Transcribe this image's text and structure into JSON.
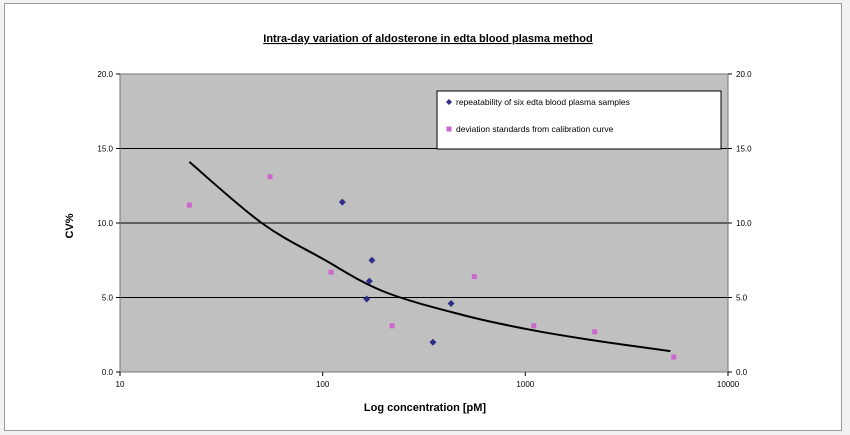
{
  "chart_data": {
    "type": "scatter",
    "title": "Intra-day variation of aldosterone in edta blood plasma method",
    "xlabel": "Log concentration [pM]",
    "ylabel": "CV%",
    "xscale": "log",
    "xlim": [
      10,
      10000
    ],
    "ylim": [
      0,
      20
    ],
    "x_ticks": [
      "10",
      "100",
      "1000",
      "10000"
    ],
    "y_ticks": [
      "0.0",
      "5.0",
      "10.0",
      "15.0",
      "20.0"
    ],
    "y2_ticks": [
      "0.0",
      "5.0",
      "10.0",
      "15.0",
      "20.0"
    ],
    "grid": "horizontal",
    "legend_position": "top-right",
    "plot_background": "#c0c0c0",
    "series": [
      {
        "name": "repeatability of six edta blood plasma samples",
        "marker": "diamond",
        "color": "#2e2e8a",
        "points": [
          [
            125,
            11.4
          ],
          [
            175,
            7.5
          ],
          [
            170,
            6.1
          ],
          [
            165,
            4.9
          ],
          [
            430,
            4.6
          ],
          [
            350,
            2.0
          ]
        ]
      },
      {
        "name": "deviation standards from calibration curve",
        "marker": "square",
        "color": "#cc66cc",
        "points": [
          [
            22,
            11.2
          ],
          [
            55,
            13.1
          ],
          [
            110,
            6.7
          ],
          [
            220,
            3.1
          ],
          [
            560,
            6.4
          ],
          [
            1100,
            3.1
          ],
          [
            2200,
            2.7
          ],
          [
            5400,
            1.0
          ]
        ]
      }
    ],
    "trendline": {
      "color": "#000000",
      "points": [
        [
          22,
          14.1
        ],
        [
          50,
          10.0
        ],
        [
          100,
          7.6
        ],
        [
          200,
          5.4
        ],
        [
          500,
          3.8
        ],
        [
          1000,
          2.9
        ],
        [
          2000,
          2.2
        ],
        [
          5200,
          1.4
        ]
      ]
    }
  }
}
